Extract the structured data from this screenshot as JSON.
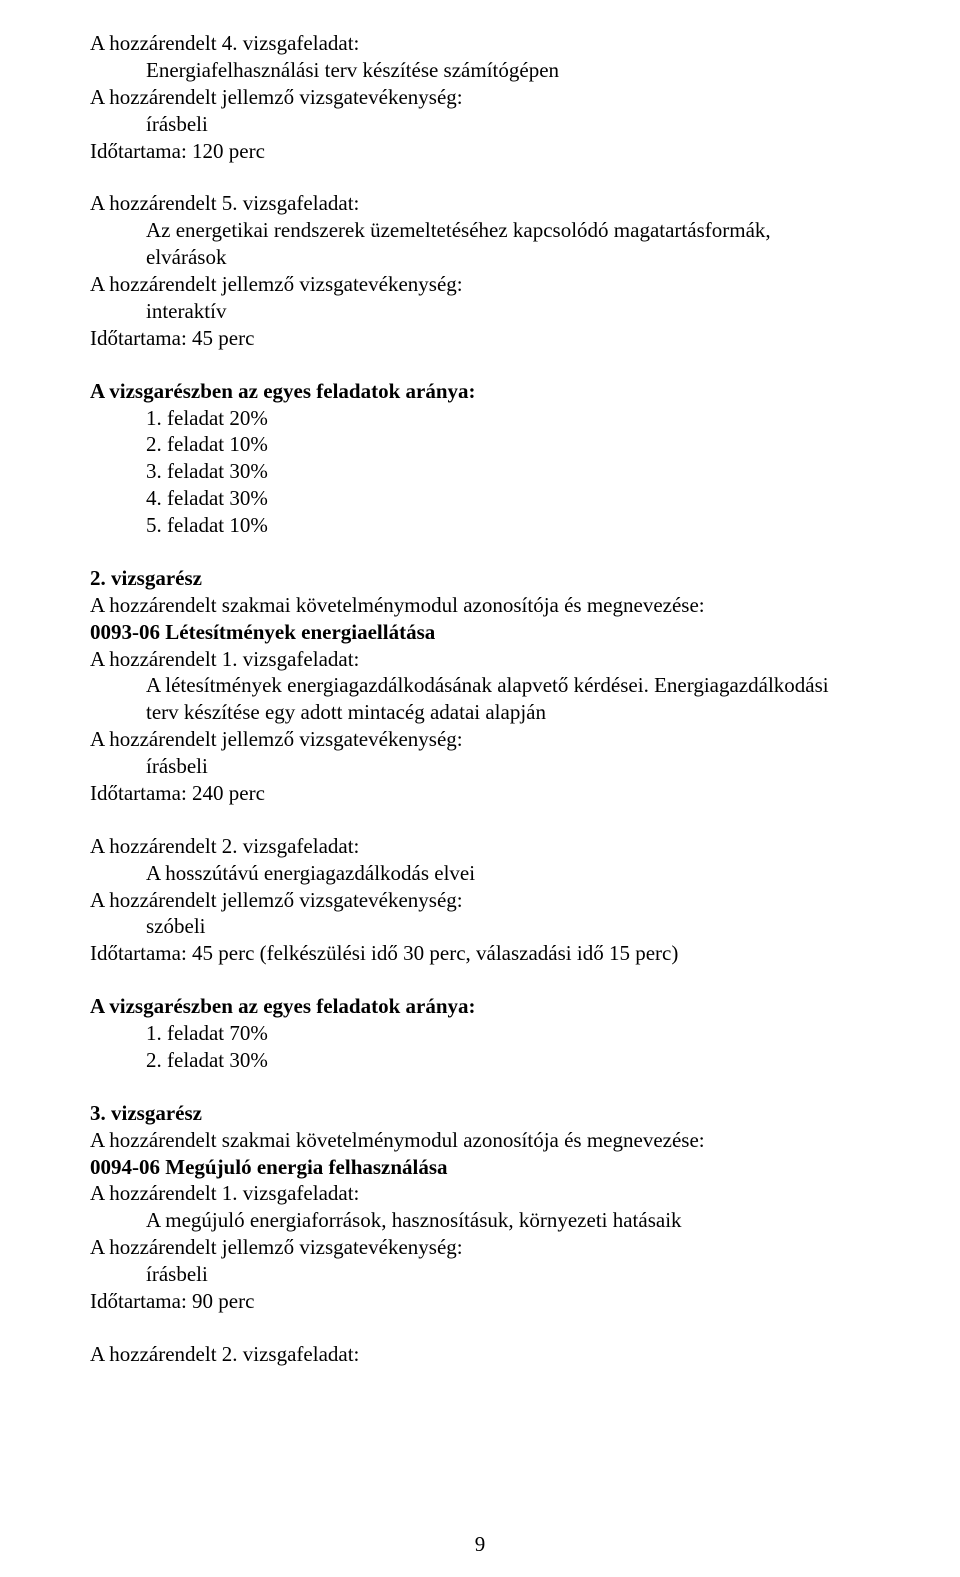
{
  "task4": {
    "heading": "A hozzárendelt 4. vizsgafeladat:",
    "title": "Energiafelhasználási terv készítése számítógépen",
    "activityLabel": "A hozzárendelt jellemző vizsgatevékenység:",
    "activity": "írásbeli",
    "duration": "Időtartama:  120 perc"
  },
  "task5": {
    "heading": "A hozzárendelt 5. vizsgafeladat:",
    "title1": "Az energetikai rendszerek üzemeltetéséhez kapcsolódó magatartásformák,",
    "title2": "elvárások",
    "activityLabel": "A hozzárendelt jellemző vizsgatevékenység:",
    "activity": "interaktív",
    "duration": "Időtartama:  45 perc"
  },
  "weights1": {
    "heading": "A vizsgarészben az egyes feladatok aránya:",
    "r1": "1. feladat   20%",
    "r2": "2. feladat   10%",
    "r3": "3. feladat   30%",
    "r4": "4. feladat   30%",
    "r5": "5. feladat   10%"
  },
  "section2": {
    "heading": "2. vizsgarész",
    "modLine": "A hozzárendelt szakmai követelménymodul azonosítója és megnevezése:",
    "modCode": "0093-06  Létesítmények energiaellátása",
    "t1heading": "A hozzárendelt 1. vizsgafeladat:",
    "t1line1": "A létesítmények energiagazdálkodásának alapvető kérdései. Energiagazdálkodási",
    "t1line2": "terv készítése egy adott mintacég adatai alapján",
    "activityLabel": "A hozzárendelt jellemző vizsgatevékenység:",
    "t1activity": "írásbeli",
    "t1duration": "Időtartama:  240 perc",
    "t2heading": "A hozzárendelt 2. vizsgafeladat:",
    "t2title": "A hosszútávú energiagazdálkodás elvei",
    "t2activity": "szóbeli",
    "t2duration": "Időtartama:  45 perc (felkészülési idő 30 perc, válaszadási idő 15 perc)"
  },
  "weights2": {
    "heading": "A vizsgarészben az egyes feladatok aránya:",
    "r1": "1. feladat   70%",
    "r2": "2. feladat   30%"
  },
  "section3": {
    "heading": "3. vizsgarész",
    "modLine": "A hozzárendelt szakmai követelménymodul azonosítója és megnevezése:",
    "modCode": "0094-06  Megújuló energia felhasználása",
    "t1heading": "A hozzárendelt 1. vizsgafeladat:",
    "t1title": "A megújuló energiaforrások, hasznosításuk, környezeti hatásaik",
    "activityLabel": "A hozzárendelt jellemző vizsgatevékenység:",
    "t1activity": "írásbeli",
    "t1duration": "Időtartama:  90 perc",
    "t2heading": "A hozzárendelt 2. vizsgafeladat:"
  },
  "pageNumber": "9"
}
